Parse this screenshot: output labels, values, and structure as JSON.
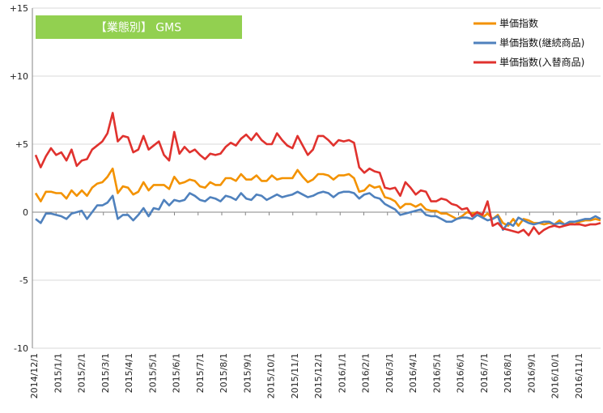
{
  "chart_data": {
    "type": "line",
    "title": "【業態別】 GMS",
    "ylim": [
      -10,
      15
    ],
    "y_ticks": [
      {
        "value": 15,
        "label": "+15"
      },
      {
        "value": 10,
        "label": "+10"
      },
      {
        "value": 5,
        "label": "+5"
      },
      {
        "value": 0,
        "label": "0"
      },
      {
        "value": -5,
        "label": "-5"
      },
      {
        "value": -10,
        "label": "-10"
      }
    ],
    "x_tick_labels": [
      "2014/12/1",
      "2015/1/1",
      "2015/2/1",
      "2015/3/1",
      "2015/4/1",
      "2015/5/1",
      "2015/6/1",
      "2015/7/1",
      "2015/8/1",
      "2015/9/1",
      "2015/10/1",
      "2015/11/1",
      "2015/12/1",
      "2016/1/1",
      "2016/2/1",
      "2016/3/1",
      "2016/4/1",
      "2016/5/1",
      "2016/6/1",
      "2016/7/1",
      "2016/8/1",
      "2016/9/1",
      "2016/10/1",
      "2016/11/1"
    ],
    "legend_position": "top-right",
    "series": [
      {
        "name": "単価指数",
        "color": "#F39200",
        "values": [
          1.4,
          0.8,
          1.5,
          1.5,
          1.4,
          1.4,
          1.0,
          1.6,
          1.2,
          1.6,
          1.2,
          1.8,
          2.1,
          2.2,
          2.6,
          3.2,
          1.4,
          1.9,
          1.8,
          1.3,
          1.5,
          2.2,
          1.6,
          2.0,
          2.0,
          2.0,
          1.7,
          2.6,
          2.1,
          2.2,
          2.4,
          2.3,
          1.9,
          1.8,
          2.2,
          2.0,
          2.0,
          2.5,
          2.5,
          2.3,
          2.8,
          2.4,
          2.4,
          2.7,
          2.3,
          2.3,
          2.7,
          2.4,
          2.5,
          2.5,
          2.5,
          3.1,
          2.6,
          2.2,
          2.4,
          2.8,
          2.8,
          2.7,
          2.4,
          2.7,
          2.7,
          2.8,
          2.5,
          1.5,
          1.6,
          2.0,
          1.8,
          1.9,
          1.1,
          1.0,
          0.8,
          0.3,
          0.6,
          0.6,
          0.4,
          0.6,
          0.2,
          0.1,
          0.1,
          -0.1,
          -0.1,
          -0.3,
          -0.5,
          -0.3,
          0.0,
          -0.1,
          0.0,
          -0.4,
          -0.1,
          -0.5,
          -0.2,
          -0.8,
          -1.0,
          -0.5,
          -1.0,
          -0.5,
          -0.6,
          -0.8,
          -0.8,
          -0.9,
          -0.8,
          -0.9,
          -0.6,
          -0.9,
          -0.8,
          -0.9,
          -0.7,
          -0.6,
          -0.6,
          -0.5,
          -0.6
        ]
      },
      {
        "name": "単価指数(継続商品)",
        "color": "#4F81BD",
        "values": [
          -0.5,
          -0.8,
          -0.1,
          -0.1,
          -0.2,
          -0.3,
          -0.5,
          -0.1,
          0.0,
          0.1,
          -0.5,
          0.0,
          0.5,
          0.5,
          0.7,
          1.2,
          -0.5,
          -0.2,
          -0.2,
          -0.6,
          -0.2,
          0.3,
          -0.3,
          0.3,
          0.2,
          0.9,
          0.5,
          0.9,
          0.8,
          0.9,
          1.4,
          1.2,
          0.9,
          0.8,
          1.1,
          1.0,
          0.8,
          1.2,
          1.1,
          0.9,
          1.4,
          1.0,
          0.9,
          1.3,
          1.2,
          0.9,
          1.1,
          1.3,
          1.1,
          1.2,
          1.3,
          1.5,
          1.3,
          1.1,
          1.2,
          1.4,
          1.5,
          1.4,
          1.1,
          1.4,
          1.5,
          1.5,
          1.4,
          1.0,
          1.3,
          1.4,
          1.1,
          1.0,
          0.6,
          0.4,
          0.2,
          -0.2,
          -0.1,
          0.0,
          0.1,
          0.2,
          -0.2,
          -0.3,
          -0.3,
          -0.5,
          -0.7,
          -0.7,
          -0.5,
          -0.4,
          -0.4,
          -0.5,
          -0.2,
          -0.4,
          -0.6,
          -0.5,
          -0.3,
          -1.3,
          -0.8,
          -1.0,
          -0.4,
          -0.6,
          -0.8,
          -0.9,
          -0.8,
          -0.7,
          -0.7,
          -0.9,
          -0.8,
          -0.9,
          -0.7,
          -0.7,
          -0.6,
          -0.5,
          -0.5,
          -0.3,
          -0.5
        ]
      },
      {
        "name": "単価指数(入替商品)",
        "color": "#E0322E",
        "values": [
          4.2,
          3.3,
          4.1,
          4.7,
          4.2,
          4.4,
          3.8,
          4.6,
          3.4,
          3.8,
          3.9,
          4.6,
          4.9,
          5.2,
          5.8,
          7.3,
          5.2,
          5.6,
          5.5,
          4.4,
          4.6,
          5.6,
          4.6,
          4.9,
          5.2,
          4.2,
          3.8,
          5.9,
          4.3,
          4.8,
          4.4,
          4.6,
          4.2,
          3.9,
          4.3,
          4.2,
          4.3,
          4.8,
          5.1,
          4.9,
          5.4,
          5.7,
          5.3,
          5.8,
          5.3,
          5.0,
          5.0,
          5.8,
          5.3,
          4.9,
          4.7,
          5.6,
          4.9,
          4.2,
          4.6,
          5.6,
          5.6,
          5.3,
          4.9,
          5.3,
          5.2,
          5.3,
          5.1,
          3.3,
          2.9,
          3.2,
          3.0,
          2.9,
          1.8,
          1.7,
          1.8,
          1.2,
          2.2,
          1.8,
          1.3,
          1.6,
          1.5,
          0.8,
          0.8,
          1.0,
          0.9,
          0.6,
          0.5,
          0.2,
          0.3,
          -0.3,
          0.0,
          -0.2,
          0.8,
          -1.0,
          -0.8,
          -1.2,
          -1.3,
          -1.4,
          -1.5,
          -1.3,
          -1.7,
          -1.1,
          -1.6,
          -1.3,
          -1.1,
          -1.0,
          -1.1,
          -1.0,
          -0.9,
          -0.9,
          -0.9,
          -1.0,
          -0.9,
          -0.9,
          -0.8
        ]
      }
    ]
  }
}
